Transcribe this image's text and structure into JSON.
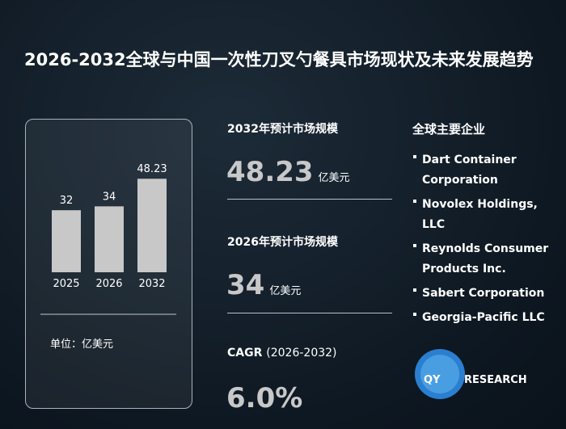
{
  "title": "2026-2032全球与中国一次性刀叉勺餐具市场现状及未来发展趋势",
  "chart_data": {
    "type": "bar",
    "categories": [
      "2025",
      "2026",
      "2032"
    ],
    "values": [
      32,
      34,
      48.23
    ],
    "color": "#c8c8c8",
    "unit_label": "单位：亿美元"
  },
  "stats": [
    {
      "label": "2032年预计市场规模",
      "value": 48.23,
      "unit": "亿美元"
    },
    {
      "label": "2026年预计市场规模",
      "value": 34,
      "unit": "亿美元"
    },
    {
      "label_bold": "CAGR",
      "label_rest": "(2026-2032)",
      "value": "6.0%"
    }
  ],
  "companies_title": "全球主要企业",
  "companies": [
    "Dart Container Corporation",
    "Novolex Holdings, LLC",
    "Reynolds Consumer Products Inc.",
    "Sabert Corporation",
    "Georgia-Pacific LLC"
  ],
  "logo": {
    "mark": "QY",
    "text": "RESEARCH"
  }
}
